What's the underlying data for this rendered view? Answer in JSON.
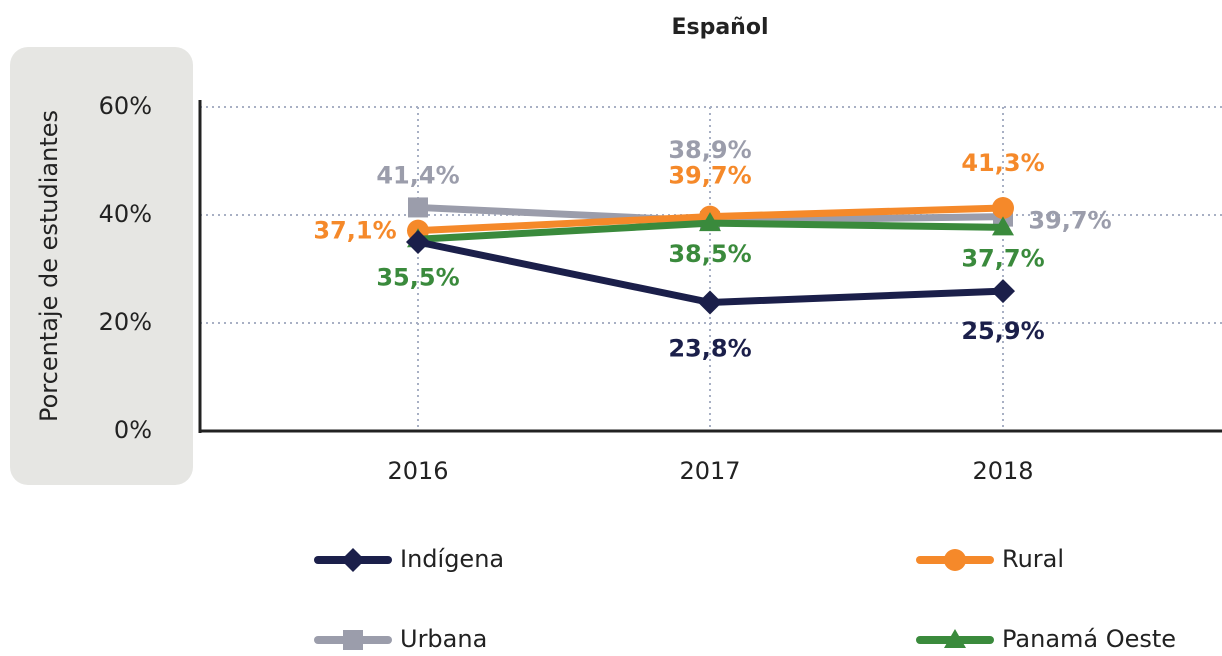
{
  "chart_data": {
    "type": "line",
    "title": "Español",
    "y_label": "Porcentaje de estudiantes",
    "categories": [
      "2016",
      "2017",
      "2018"
    ],
    "ylim": [
      0,
      60
    ],
    "yticks": [
      {
        "value": 0,
        "label": "0%"
      },
      {
        "value": 20,
        "label": "20%"
      },
      {
        "value": 40,
        "label": "40%"
      },
      {
        "value": 60,
        "label": "60%"
      }
    ],
    "grid": true,
    "series": [
      {
        "name": "Urbana",
        "color": "#9b9dab",
        "marker": "square",
        "values": [
          41.4,
          38.9,
          39.7
        ],
        "value_labels": [
          "41,4%",
          "38,9%",
          "39,7%"
        ]
      },
      {
        "name": "Rural",
        "color": "#f5892a",
        "marker": "circle",
        "values": [
          37.1,
          39.7,
          41.3
        ],
        "value_labels": [
          "37,1%",
          "39,7%",
          "41,3%"
        ]
      },
      {
        "name": "Panamá Oeste",
        "color": "#3a8a3c",
        "marker": "triangle",
        "values": [
          35.5,
          38.5,
          37.7
        ],
        "value_labels": [
          "35,5%",
          "38,5%",
          "37,7%"
        ]
      },
      {
        "name": "Indígena",
        "color": "#1b1f4a",
        "marker": "diamond",
        "values": [
          35,
          23.8,
          25.9
        ],
        "value_labels": [
          null,
          "23,8%",
          "25,9%"
        ]
      }
    ]
  }
}
